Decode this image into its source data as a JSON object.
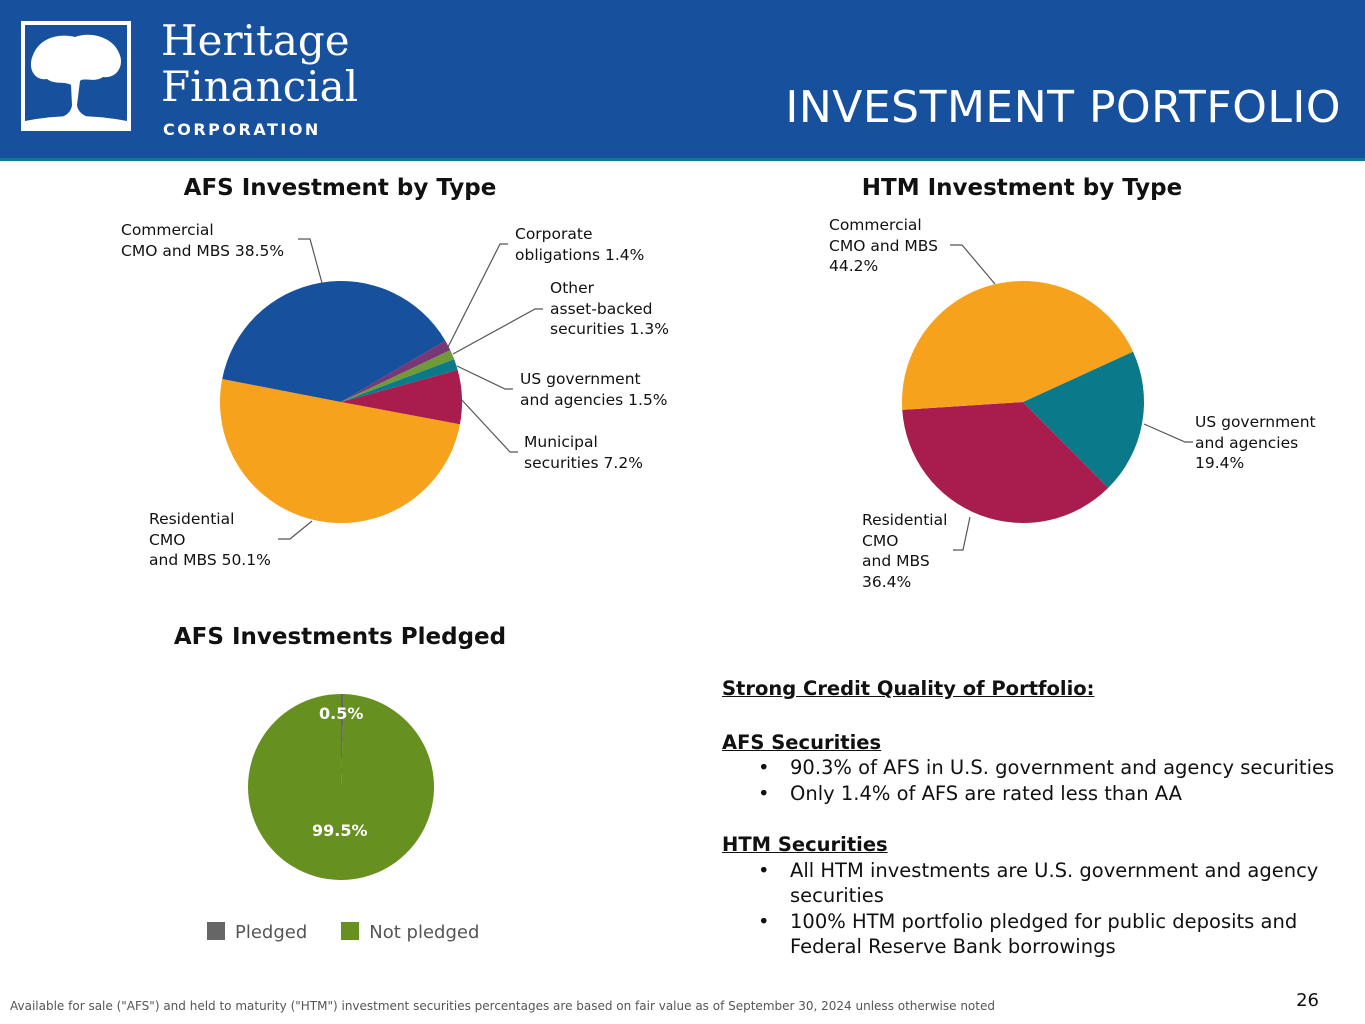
{
  "header": {
    "logo_name_line1": "Heritage",
    "logo_name_line2": "Financial",
    "logo_corp": "CORPORATION",
    "title": "INVESTMENT PORTFOLIO"
  },
  "colors": {
    "header_bg": "#17509d",
    "blue": "#17509d",
    "orange": "#f6a21d",
    "crimson": "#a91d4e",
    "teal": "#0a7a8a",
    "green": "#6e9a3a",
    "purple": "#7a3776",
    "pledged_gray": "#666666",
    "not_pledged_green": "#66901f"
  },
  "chart_data": [
    {
      "type": "pie",
      "title": "AFS Investment by Type",
      "slices": [
        {
          "label": "Residential CMO and MBS",
          "value": 50.1,
          "display": "Residential\nCMO\nand MBS 50.1%",
          "color": "#f6a21d"
        },
        {
          "label": "Commercial CMO and MBS",
          "value": 38.5,
          "display": "Commercial\nCMO and MBS 38.5%",
          "color": "#17509d"
        },
        {
          "label": "Corporate obligations",
          "value": 1.4,
          "display": "Corporate\nobligations 1.4%",
          "color": "#7a3776"
        },
        {
          "label": "Other asset-backed securities",
          "value": 1.3,
          "display": "Other\nasset-backed\nsecurities 1.3%",
          "color": "#6e9a3a"
        },
        {
          "label": "US government and agencies",
          "value": 1.5,
          "display": "US government\nand agencies 1.5%",
          "color": "#0a7a8a"
        },
        {
          "label": "Municipal securities",
          "value": 7.2,
          "display": "Municipal\nsecurities 7.2%",
          "color": "#a91d4e"
        }
      ]
    },
    {
      "type": "pie",
      "title": "HTM Investment by Type",
      "slices": [
        {
          "label": "US government and agencies",
          "value": 19.4,
          "display": "US government\nand agencies\n19.4%",
          "color": "#0a7a8a"
        },
        {
          "label": "Residential CMO and MBS",
          "value": 36.4,
          "display": "Residential\nCMO\nand MBS\n36.4%",
          "color": "#a91d4e"
        },
        {
          "label": "Commercial CMO and MBS",
          "value": 44.2,
          "display": "Commercial\nCMO and MBS\n44.2%",
          "color": "#f6a21d"
        }
      ]
    },
    {
      "type": "pie",
      "title": "AFS Investments Pledged",
      "legend": "bottom",
      "slices": [
        {
          "label": "Pledged",
          "value": 0.5,
          "display": "0.5%",
          "color": "#666666"
        },
        {
          "label": "Not pledged",
          "value": 99.5,
          "display": "99.5%",
          "color": "#66901f"
        }
      ]
    }
  ],
  "text": {
    "heading": "Strong Credit Quality of Portfolio:",
    "afs_heading": "AFS Securities",
    "afs_bullets": [
      "90.3% of AFS in U.S. government and agency securities",
      "Only 1.4% of AFS are rated less than AA"
    ],
    "htm_heading": "HTM Securities",
    "htm_bullets": [
      "All HTM investments are U.S. government and agency securities",
      "100% HTM portfolio pledged for public deposits and Federal Reserve Bank borrowings"
    ]
  },
  "footnote": "Available for sale (\"AFS\") and held to maturity (\"HTM\") investment securities percentages are based on fair value as of September 30, 2024 unless otherwise noted",
  "page_number": "26"
}
